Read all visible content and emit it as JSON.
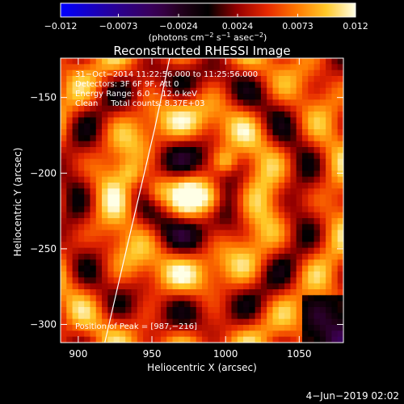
{
  "colorbar": {
    "ticks": [
      "−0.012",
      "−0.0073",
      "−0.0024",
      "0.0024",
      "0.0073",
      "0.012"
    ],
    "tick_values": [
      -0.012,
      -0.0073,
      -0.0024,
      0.0024,
      0.0073,
      0.012
    ],
    "range": [
      -0.012,
      0.012
    ],
    "unit_main": "(photons cm",
    "unit_exp1": "−2",
    "unit_mid": " s",
    "unit_exp2": "−1",
    "unit_mid2": " asec",
    "unit_exp3": "−2",
    "unit_end": ")"
  },
  "chart_data": {
    "type": "heatmap",
    "title": "Reconstructed RHESSI Image",
    "xlabel": "Heliocentric X (arcsec)",
    "ylabel": "Heliocentric Y (arcsec)",
    "xlim": [
      888,
      1080
    ],
    "ylim": [
      -312,
      -124
    ],
    "x_ticks": [
      900,
      950,
      1000,
      1050
    ],
    "y_ticks": [
      -150,
      -200,
      -250,
      -300
    ],
    "x_tick_labels": [
      "900",
      "950",
      "1000",
      "1050"
    ],
    "y_tick_labels": [
      "−150",
      "−200",
      "−250",
      "−300"
    ],
    "annotations": [
      "31−Oct−2014 11:22:56.000 to 11:25:56.000",
      "Detectors: 3F 6F 9F, Att 0",
      "Energy Range: 6.0 − 12.0 keV",
      "Clean     Total counts: 8.37E+03"
    ],
    "peak_label": "Position of Peak = [987,−216]",
    "peak": [
      987,
      -216
    ],
    "sources": [
      {
        "x": 987,
        "y": -216,
        "peak": 1.0,
        "sigma": 9
      },
      {
        "x": 955,
        "y": -212,
        "peak": 0.85,
        "sigma": 9
      },
      {
        "x": 1000,
        "y": -192,
        "peak": 0.7,
        "sigma": 6
      },
      {
        "x": 935,
        "y": -200,
        "peak": 0.55,
        "sigma": 6
      }
    ],
    "limb_curve": [
      [
        918,
        -312
      ],
      [
        928,
        -270
      ],
      [
        940,
        -220
      ],
      [
        952,
        -170
      ],
      [
        962,
        -124
      ]
    ]
  },
  "footer": {
    "date": "4−Jun−2019 02:02"
  }
}
